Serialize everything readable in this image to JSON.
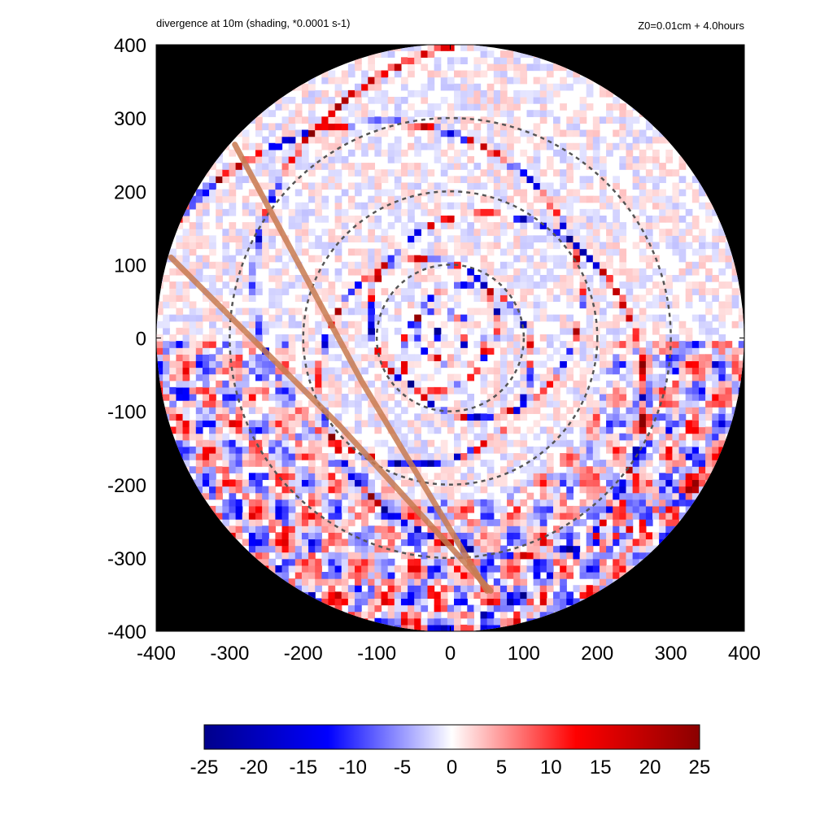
{
  "chart_data": {
    "type": "heatmap",
    "title": "divergence at 10m (shading, *0.0001 s-1)",
    "subtitle": "Z0=0.01cm  + 4.0hours",
    "xlabel": "",
    "ylabel": "",
    "xlim": [
      -400,
      400
    ],
    "ylim": [
      -400,
      400
    ],
    "x_ticks": [
      -400,
      -300,
      -200,
      -100,
      0,
      100,
      200,
      300,
      400
    ],
    "y_ticks": [
      -400,
      -300,
      -200,
      -100,
      0,
      100,
      200,
      300,
      400
    ],
    "x_tick_labels": [
      "-400",
      "-300",
      "-200",
      "-100",
      "0",
      "100",
      "200",
      "300",
      "400"
    ],
    "y_tick_labels": [
      "-400",
      "-300",
      "-200",
      "-100",
      "0",
      "100",
      "200",
      "300",
      "400"
    ],
    "domain_radius": 400,
    "outside_domain_color": "#000000",
    "range_circles": [
      100,
      200,
      300
    ],
    "range_circle_style": "dashed grey",
    "tracks": [
      {
        "points": [
          [
            -293,
            264
          ],
          [
            -120,
            -60
          ],
          [
            50,
            -345
          ]
        ]
      },
      {
        "points": [
          [
            -380,
            110
          ],
          [
            -150,
            -120
          ],
          [
            55,
            -345
          ]
        ]
      }
    ],
    "track_color": "#c87a50",
    "colorbar": {
      "min": -25,
      "max": 25,
      "ticks": [
        -25,
        -20,
        -15,
        -10,
        -5,
        0,
        5,
        10,
        15,
        20,
        25
      ],
      "tick_labels": [
        "-25",
        "-20",
        "-15",
        "-10",
        "-5",
        "0",
        "5",
        "10",
        "15",
        "20",
        "25"
      ],
      "colors": [
        "#00008b",
        "#0000ff",
        "#ffffff",
        "#ff0000",
        "#8b0000"
      ]
    },
    "spiral_bands": [
      {
        "a": 62,
        "b": 0.32,
        "theta0": 0.0,
        "sign": 1
      },
      {
        "a": 62,
        "b": 0.32,
        "theta0": 3.14159,
        "sign": 1
      },
      {
        "a": 70,
        "b": 0.28,
        "theta0": 1.5,
        "sign": -1
      },
      {
        "a": 70,
        "b": 0.28,
        "theta0": 4.6,
        "sign": -1
      }
    ]
  }
}
